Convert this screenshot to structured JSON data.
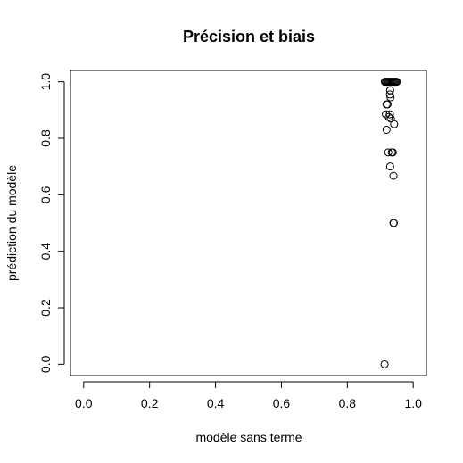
{
  "chart_data": {
    "type": "scatter",
    "title": "Précision et biais",
    "xlabel": "modèle sans terme",
    "ylabel": "prédiction du modèle",
    "xlim": [
      -0.04,
      1.04
    ],
    "ylim": [
      -0.04,
      1.04
    ],
    "x_ticks": [
      0.0,
      0.2,
      0.4,
      0.6,
      0.8,
      1.0
    ],
    "x_tick_labels": [
      "0.0",
      "0.2",
      "0.4",
      "0.6",
      "0.8",
      "1.0"
    ],
    "y_ticks": [
      0.0,
      0.2,
      0.4,
      0.6,
      0.8,
      1.0
    ],
    "y_tick_labels": [
      "0.0",
      "0.2",
      "0.4",
      "0.6",
      "0.8",
      "1.0"
    ],
    "grid": false,
    "marker": "open-circle",
    "color": "#000000",
    "points": [
      {
        "x": 0.914,
        "y": 1.0
      },
      {
        "x": 0.917,
        "y": 1.0
      },
      {
        "x": 0.92,
        "y": 1.0
      },
      {
        "x": 0.923,
        "y": 1.0
      },
      {
        "x": 0.926,
        "y": 1.0
      },
      {
        "x": 0.929,
        "y": 1.0
      },
      {
        "x": 0.932,
        "y": 1.0
      },
      {
        "x": 0.935,
        "y": 1.0
      },
      {
        "x": 0.938,
        "y": 1.0
      },
      {
        "x": 0.941,
        "y": 1.0
      },
      {
        "x": 0.944,
        "y": 1.0
      },
      {
        "x": 0.947,
        "y": 1.0
      },
      {
        "x": 0.95,
        "y": 1.0
      },
      {
        "x": 0.93,
        "y": 0.97
      },
      {
        "x": 0.929,
        "y": 0.955
      },
      {
        "x": 0.931,
        "y": 0.945
      },
      {
        "x": 0.919,
        "y": 0.92
      },
      {
        "x": 0.922,
        "y": 0.92
      },
      {
        "x": 0.917,
        "y": 0.885
      },
      {
        "x": 0.929,
        "y": 0.885
      },
      {
        "x": 0.926,
        "y": 0.875
      },
      {
        "x": 0.932,
        "y": 0.87
      },
      {
        "x": 0.942,
        "y": 0.85
      },
      {
        "x": 0.919,
        "y": 0.83
      },
      {
        "x": 0.924,
        "y": 0.75
      },
      {
        "x": 0.935,
        "y": 0.75
      },
      {
        "x": 0.938,
        "y": 0.75
      },
      {
        "x": 0.93,
        "y": 0.7
      },
      {
        "x": 0.94,
        "y": 0.667
      },
      {
        "x": 0.94,
        "y": 0.5
      },
      {
        "x": 0.941,
        "y": 0.5
      },
      {
        "x": 0.913,
        "y": 0.0
      }
    ]
  }
}
